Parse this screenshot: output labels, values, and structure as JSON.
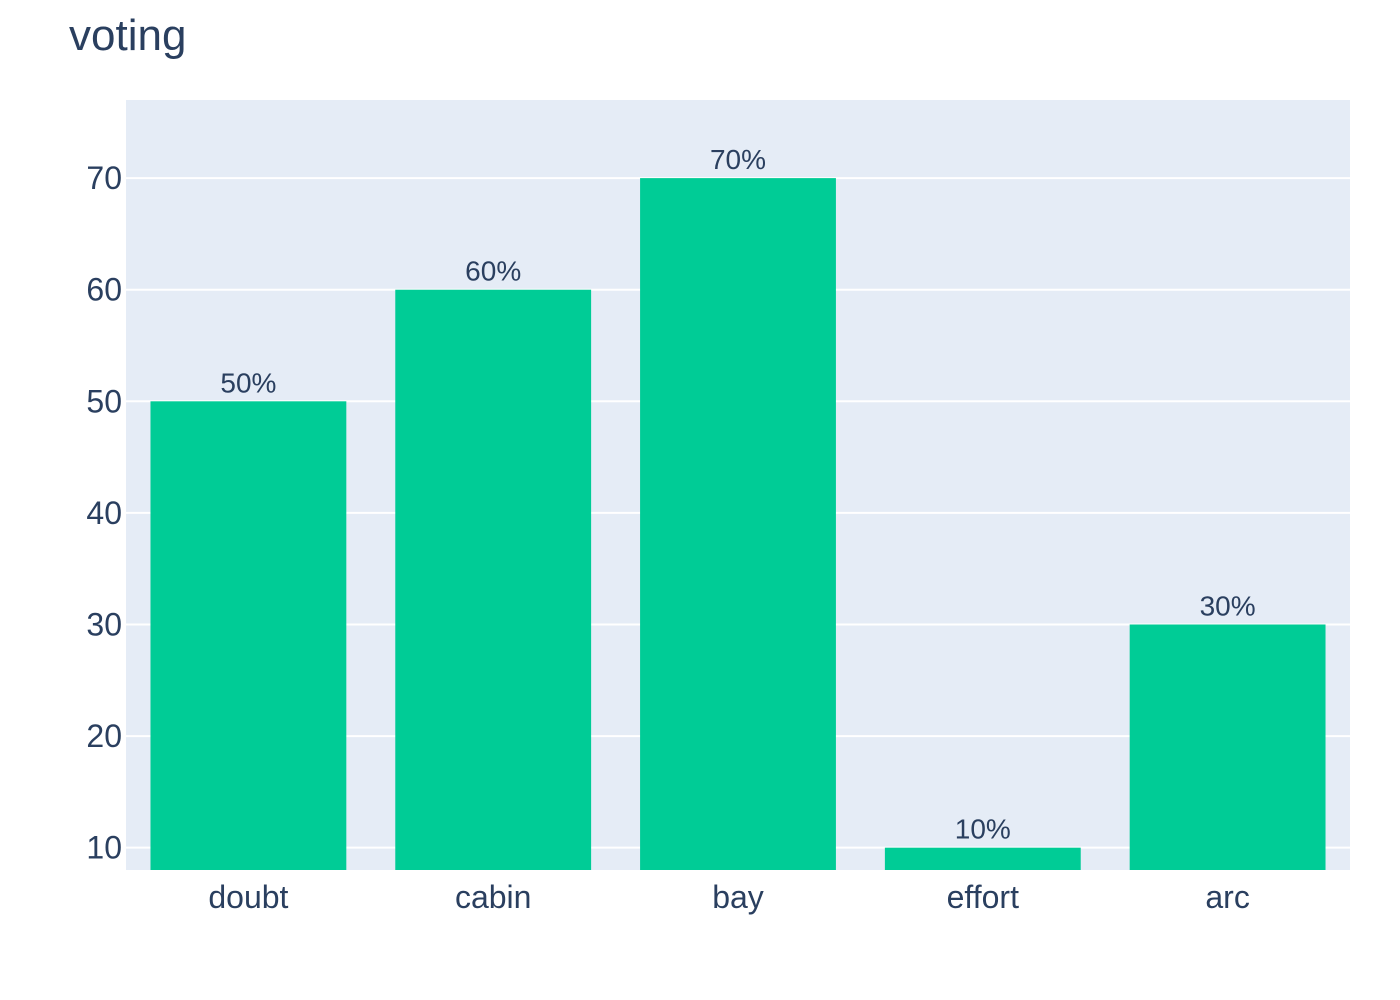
{
  "chart_data": {
    "type": "bar",
    "title": "voting",
    "categories": [
      "doubt",
      "cabin",
      "bay",
      "effort",
      "arc"
    ],
    "values": [
      50,
      60,
      70,
      10,
      30
    ],
    "data_labels": [
      "50%",
      "60%",
      "70%",
      "10%",
      "30%"
    ],
    "xlabel": "",
    "ylabel": "",
    "ylim": [
      8,
      77
    ],
    "yticks": [
      10,
      20,
      30,
      40,
      50,
      60,
      70
    ],
    "grid": true,
    "colors": {
      "bar": "#00cc96",
      "plot_bg": "#e5ecf6",
      "grid": "#ffffff",
      "text": "#2a3f5f"
    }
  }
}
